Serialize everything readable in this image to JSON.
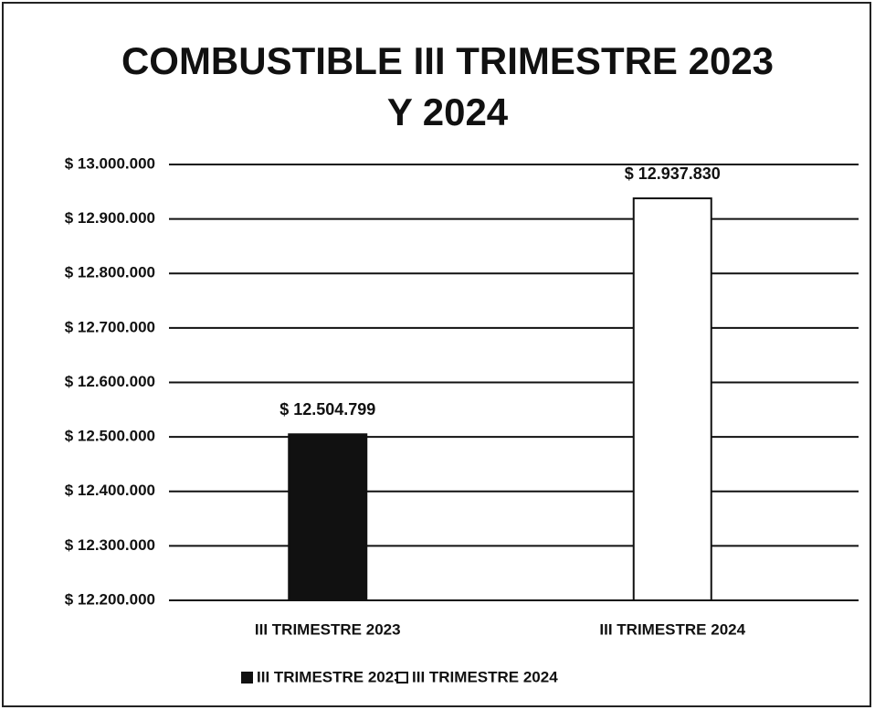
{
  "chart_data": {
    "type": "bar",
    "title": "COMBUSTIBLE III TRIMESTRE 2023",
    "subtitle": "Y 2024",
    "categories": [
      "III TRIMESTRE 2023",
      "III TRIMESTRE 2024"
    ],
    "series": [
      {
        "name": "III TRIMESTRE 2023",
        "color": "#111111",
        "values": [
          12504799,
          null
        ],
        "value_labels": [
          "$ 12.504.799",
          null
        ]
      },
      {
        "name": "III TRIMESTRE 2024",
        "color": "#ffffff",
        "values": [
          null,
          12937830
        ],
        "value_labels": [
          null,
          "$ 12.937.830"
        ]
      }
    ],
    "ylim": [
      12200000,
      13000000
    ],
    "yticks": [
      {
        "value": 12200000,
        "label": "$ 12.200.000"
      },
      {
        "value": 12300000,
        "label": "$ 12.300.000"
      },
      {
        "value": 12400000,
        "label": "$ 12.400.000"
      },
      {
        "value": 12500000,
        "label": "$ 12.500.000"
      },
      {
        "value": 12600000,
        "label": "$ 12.600.000"
      },
      {
        "value": 12700000,
        "label": "$ 12.700.000"
      },
      {
        "value": 12800000,
        "label": "$ 12.800.000"
      },
      {
        "value": 12900000,
        "label": "$ 12.900.000"
      },
      {
        "value": 13000000,
        "label": "$ 13.000.000"
      }
    ],
    "grid": true,
    "legend": "bottom"
  }
}
